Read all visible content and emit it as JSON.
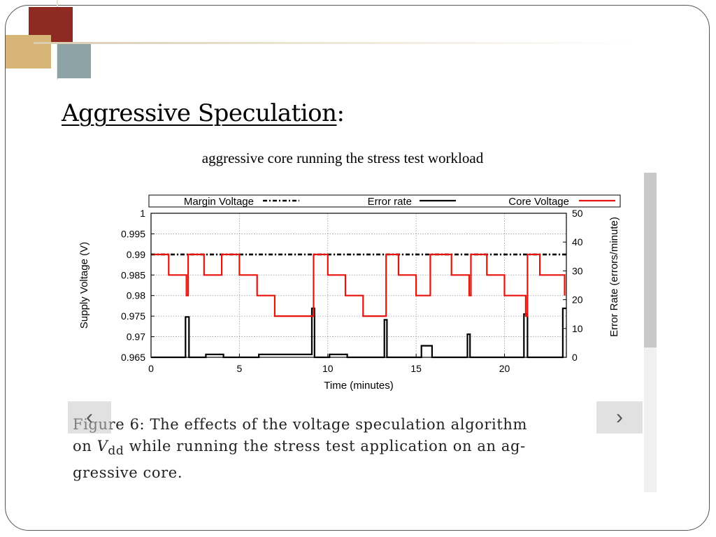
{
  "slide": {
    "title": "Aggressive Speculation",
    "title_suffix": ":",
    "subtitle": "aggressive core running the stress test workload"
  },
  "figure": {
    "caption_line1": "Figure 6: The effects of the voltage speculation algorithm",
    "caption_line2_pre": "on ",
    "caption_var": "V",
    "caption_sub": "dd",
    "caption_line2_post": " while running the stress test application on an ag-",
    "caption_line3": "gressive core."
  },
  "nav": {
    "prev_icon": "chevron-left-icon",
    "prev_glyph": "‹",
    "next_icon": "chevron-right-icon",
    "next_glyph": "›"
  },
  "chart_data": {
    "type": "line",
    "xlabel": "Time (minutes)",
    "ylabel_left": "Supply Voltage (V)",
    "ylabel_right": "Error Rate (errors/minute)",
    "xlim": [
      0,
      23.5
    ],
    "ylim_left": [
      0.965,
      1.0
    ],
    "ylim_right": [
      0,
      50
    ],
    "x_ticks": [
      0,
      5,
      10,
      15,
      20
    ],
    "y_ticks_left": [
      "0.965",
      "0.97",
      "0.975",
      "0.98",
      "0.985",
      "0.99",
      "0.995",
      "1"
    ],
    "y_ticks_right": [
      "0",
      "10",
      "20",
      "30",
      "40",
      "50"
    ],
    "grid": true,
    "legend_position": "top",
    "legend": [
      {
        "name": "Margin Voltage",
        "style": "dash-dot",
        "color": "#000000"
      },
      {
        "name": "Error rate",
        "style": "solid",
        "color": "#000000"
      },
      {
        "name": "Core Voltage",
        "style": "solid",
        "color": "#e8120c"
      }
    ],
    "series": [
      {
        "name": "Margin Voltage",
        "axis": "left",
        "x": [
          0,
          23.5
        ],
        "y": [
          0.99,
          0.99
        ]
      },
      {
        "name": "Core Voltage",
        "axis": "left",
        "x": [
          0,
          1,
          1,
          2,
          2,
          2.1,
          2.1,
          3,
          3,
          4,
          4,
          5,
          5,
          6,
          6,
          7,
          7,
          9.2,
          9.2,
          10,
          10,
          11,
          11,
          12,
          12,
          13.3,
          13.3,
          14,
          14,
          15,
          15,
          15.8,
          15.8,
          17,
          17,
          18,
          18,
          18.1,
          18.1,
          19,
          19,
          20,
          20,
          21.2,
          21.2,
          21.3,
          21.3,
          22,
          22,
          23.4,
          23.4
        ],
        "y": [
          0.99,
          0.99,
          0.985,
          0.985,
          0.98,
          0.98,
          0.99,
          0.99,
          0.985,
          0.985,
          0.99,
          0.99,
          0.985,
          0.985,
          0.98,
          0.98,
          0.975,
          0.975,
          0.99,
          0.99,
          0.985,
          0.985,
          0.98,
          0.98,
          0.975,
          0.975,
          0.99,
          0.99,
          0.985,
          0.985,
          0.98,
          0.98,
          0.99,
          0.99,
          0.985,
          0.985,
          0.98,
          0.98,
          0.99,
          0.99,
          0.985,
          0.985,
          0.98,
          0.98,
          0.975,
          0.975,
          0.99,
          0.99,
          0.985,
          0.985,
          0.98
        ]
      },
      {
        "name": "Error rate",
        "axis": "right",
        "x": [
          0,
          1.95,
          1.95,
          2.15,
          2.15,
          3.1,
          3.1,
          4.1,
          4.1,
          6.1,
          6.1,
          9.1,
          9.1,
          9.25,
          9.25,
          10.1,
          10.1,
          11.1,
          11.1,
          13.2,
          13.2,
          13.35,
          13.35,
          15.3,
          15.3,
          15.9,
          15.9,
          17.9,
          17.9,
          18.05,
          18.05,
          21.1,
          21.1,
          21.3,
          21.3,
          23.3,
          23.3,
          23.5
        ],
        "y": [
          0,
          0,
          14,
          14,
          0,
          0,
          1,
          1,
          0,
          0,
          1,
          1,
          17,
          17,
          0,
          0,
          1,
          1,
          0,
          0,
          13,
          13,
          0,
          0,
          4,
          4,
          0,
          0,
          8,
          8,
          0,
          0,
          15,
          15,
          0,
          0,
          17,
          17
        ]
      }
    ]
  }
}
